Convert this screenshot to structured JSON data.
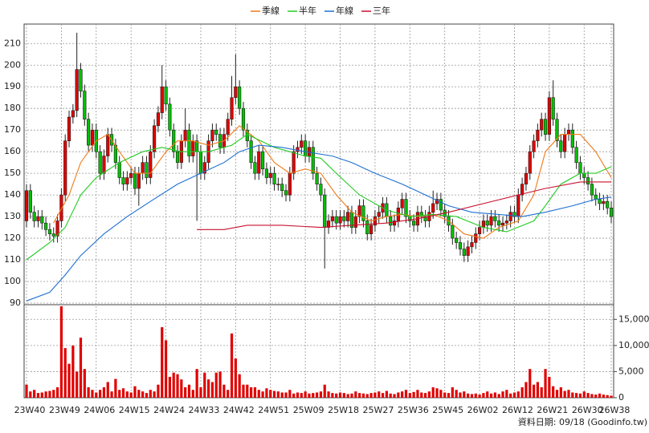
{
  "chart_data": [
    {
      "type": "candlestick",
      "categories": [
        "23W40",
        null,
        null,
        null,
        null,
        null,
        null,
        null,
        null,
        "23W49",
        null,
        null,
        null,
        null,
        null,
        null,
        null,
        null,
        "24W06",
        null,
        null,
        null,
        null,
        null,
        null,
        null,
        null,
        "24W15",
        null,
        null,
        null,
        null,
        null,
        null,
        null,
        null,
        "24W24",
        null,
        null,
        null,
        null,
        null,
        null,
        null,
        null,
        "24W33",
        null,
        null,
        null,
        null,
        null,
        null,
        null,
        null,
        "24W42",
        null,
        null,
        null,
        null,
        null,
        null,
        null,
        null,
        "24W51",
        null,
        null,
        null,
        null,
        null,
        null,
        null,
        null,
        "25W09",
        null,
        null,
        null,
        null,
        null,
        null,
        null,
        null,
        "25W18",
        null,
        null,
        null,
        null,
        null,
        null,
        null,
        null,
        "25W27",
        null,
        null,
        null,
        null,
        null,
        null,
        null,
        null,
        "25W36",
        null,
        null,
        null,
        null,
        null,
        null,
        null,
        null,
        "25W45",
        null,
        null,
        null,
        null,
        null,
        null,
        null,
        null,
        "26W02",
        null,
        null,
        null,
        null,
        null,
        null,
        null,
        null,
        "26W12",
        null,
        null,
        null,
        null,
        null,
        null,
        null,
        null,
        "26W21",
        null,
        null,
        null,
        null,
        null,
        null,
        null,
        null,
        "26W30",
        null,
        null,
        null,
        null,
        null,
        null,
        "26W38"
      ],
      "open": [
        128,
        142,
        132,
        128,
        130,
        127,
        124,
        122,
        121,
        128,
        140,
        165,
        176,
        179,
        198,
        188,
        175,
        163,
        170,
        160,
        150,
        158,
        168,
        163,
        155,
        148,
        145,
        148,
        150,
        143,
        150,
        155,
        148,
        160,
        172,
        178,
        190,
        182,
        170,
        160,
        155,
        165,
        170,
        158,
        165,
        160,
        150,
        155,
        165,
        170,
        168,
        162,
        168,
        175,
        185,
        190,
        180,
        170,
        165,
        155,
        150,
        160,
        152,
        148,
        150,
        145,
        145,
        142,
        140,
        150,
        160,
        162,
        165,
        158,
        162,
        150,
        145,
        140,
        125,
        128,
        130,
        127,
        130,
        128,
        132,
        125,
        130,
        135,
        128,
        122,
        126,
        130,
        132,
        136,
        130,
        126,
        128,
        134,
        138,
        130,
        128,
        126,
        132,
        130,
        128,
        132,
        136,
        138,
        133,
        130,
        126,
        120,
        118,
        115,
        112,
        116,
        118,
        122,
        125,
        128,
        126,
        130,
        128,
        126,
        127,
        128,
        132,
        130,
        140,
        145,
        150,
        160,
        165,
        170,
        175,
        168,
        185,
        175,
        165,
        160,
        168,
        170,
        162,
        155,
        150,
        148,
        145,
        140,
        138,
        136,
        137,
        134
      ],
      "high": [
        145,
        145,
        135,
        133,
        133,
        130,
        127,
        125,
        131,
        143,
        168,
        179,
        182,
        215,
        201,
        191,
        178,
        173,
        173,
        163,
        161,
        171,
        171,
        166,
        158,
        151,
        151,
        153,
        153,
        153,
        158,
        158,
        163,
        175,
        181,
        200,
        193,
        185,
        173,
        163,
        168,
        180,
        173,
        168,
        168,
        163,
        158,
        168,
        173,
        173,
        171,
        171,
        178,
        195,
        205,
        193,
        183,
        173,
        168,
        158,
        163,
        163,
        155,
        153,
        153,
        148,
        148,
        145,
        153,
        163,
        165,
        168,
        168,
        165,
        165,
        153,
        148,
        143,
        131,
        133,
        133,
        133,
        133,
        135,
        135,
        133,
        138,
        138,
        131,
        129,
        133,
        135,
        139,
        139,
        133,
        131,
        137,
        141,
        141,
        133,
        131,
        135,
        135,
        133,
        135,
        142,
        141,
        141,
        136,
        133,
        129,
        123,
        121,
        118,
        119,
        121,
        125,
        128,
        131,
        131,
        133,
        133,
        131,
        130,
        131,
        135,
        135,
        143,
        148,
        153,
        163,
        168,
        173,
        178,
        178,
        188,
        193,
        178,
        168,
        171,
        173,
        173,
        165,
        158,
        153,
        151,
        148,
        143,
        141,
        140,
        140,
        137
      ],
      "low": [
        125,
        129,
        125,
        125,
        124,
        121,
        119,
        118,
        118,
        125,
        137,
        162,
        173,
        176,
        185,
        172,
        160,
        160,
        157,
        147,
        147,
        155,
        160,
        152,
        145,
        142,
        142,
        145,
        140,
        135,
        147,
        145,
        145,
        157,
        169,
        175,
        179,
        167,
        157,
        152,
        152,
        162,
        155,
        155,
        128,
        147,
        147,
        152,
        162,
        165,
        159,
        159,
        165,
        172,
        182,
        177,
        167,
        162,
        152,
        147,
        147,
        149,
        145,
        145,
        142,
        142,
        139,
        137,
        137,
        147,
        157,
        159,
        155,
        155,
        147,
        142,
        137,
        106,
        122,
        125,
        124,
        124,
        125,
        125,
        122,
        122,
        127,
        125,
        119,
        119,
        123,
        127,
        129,
        127,
        123,
        123,
        125,
        131,
        127,
        125,
        123,
        123,
        127,
        125,
        125,
        129,
        133,
        130,
        127,
        123,
        117,
        115,
        112,
        109,
        109,
        113,
        115,
        119,
        122,
        123,
        123,
        125,
        123,
        123,
        124,
        125,
        127,
        127,
        137,
        142,
        147,
        157,
        162,
        167,
        165,
        165,
        172,
        162,
        157,
        157,
        165,
        159,
        152,
        147,
        145,
        142,
        137,
        135,
        133,
        133,
        131,
        127
      ],
      "close": [
        142,
        132,
        128,
        130,
        127,
        124,
        122,
        121,
        128,
        140,
        165,
        176,
        179,
        198,
        188,
        175,
        163,
        170,
        160,
        150,
        158,
        168,
        163,
        155,
        148,
        145,
        148,
        150,
        143,
        150,
        155,
        148,
        160,
        172,
        178,
        190,
        182,
        170,
        160,
        155,
        165,
        170,
        158,
        165,
        160,
        150,
        155,
        165,
        170,
        168,
        162,
        168,
        175,
        185,
        190,
        180,
        170,
        165,
        155,
        150,
        160,
        152,
        148,
        150,
        145,
        145,
        142,
        140,
        150,
        160,
        162,
        165,
        158,
        162,
        150,
        145,
        140,
        125,
        128,
        130,
        127,
        130,
        128,
        132,
        125,
        130,
        135,
        128,
        122,
        126,
        130,
        132,
        136,
        130,
        126,
        128,
        134,
        138,
        130,
        128,
        126,
        132,
        130,
        128,
        132,
        136,
        138,
        133,
        130,
        126,
        120,
        118,
        115,
        112,
        116,
        118,
        122,
        125,
        128,
        126,
        130,
        128,
        126,
        127,
        128,
        132,
        130,
        140,
        145,
        150,
        160,
        165,
        170,
        175,
        168,
        185,
        175,
        165,
        160,
        168,
        170,
        162,
        155,
        150,
        148,
        145,
        140,
        138,
        136,
        137,
        134,
        130
      ],
      "up_color": "#e00000",
      "down_color": "#00c000",
      "series": [
        {
          "name": "季線",
          "color": "#f07a1a",
          "x": [
            7,
            11,
            14,
            18,
            21,
            24,
            28,
            32,
            36,
            39,
            43,
            47,
            51,
            55,
            60,
            64,
            68,
            72,
            76,
            80,
            84,
            89,
            93,
            97,
            101,
            105,
            109,
            113,
            118,
            122,
            127,
            131,
            134,
            138,
            143,
            147,
            151
          ],
          "values": [
            127,
            140,
            155,
            165,
            168,
            160,
            150,
            150,
            160,
            165,
            165,
            163,
            165,
            172,
            165,
            155,
            150,
            152,
            150,
            140,
            132,
            128,
            130,
            131,
            130,
            131,
            128,
            122,
            120,
            125,
            128,
            140,
            160,
            168,
            168,
            160,
            148
          ]
        },
        {
          "name": "半年",
          "color": "#22cc22",
          "x": [
            0,
            6,
            10,
            14,
            18,
            24,
            30,
            35,
            40,
            47,
            53,
            57,
            64,
            68,
            72,
            76,
            80,
            86,
            93,
            99,
            105,
            111,
            118,
            124,
            131,
            134,
            138,
            143,
            147,
            151
          ],
          "values": [
            110,
            118,
            125,
            140,
            148,
            155,
            160,
            162,
            160,
            160,
            163,
            168,
            162,
            160,
            158,
            157,
            150,
            140,
            133,
            130,
            131,
            130,
            125,
            123,
            128,
            135,
            145,
            150,
            150,
            153
          ]
        },
        {
          "name": "年線",
          "color": "#1f6fd0",
          "x": [
            0,
            6,
            10,
            14,
            20,
            26,
            32,
            39,
            45,
            51,
            55,
            60,
            66,
            72,
            79,
            84,
            90,
            97,
            103,
            109,
            115,
            122,
            128,
            134,
            141,
            147,
            151
          ],
          "values": [
            91,
            95,
            103,
            112,
            122,
            130,
            137,
            145,
            150,
            155,
            160,
            163,
            162,
            160,
            158,
            155,
            150,
            145,
            140,
            135,
            132,
            131,
            130,
            132,
            135,
            138,
            139
          ]
        },
        {
          "name": "三年",
          "color": "#c8102e",
          "x": [
            44,
            51,
            57,
            66,
            76,
            84,
            93,
            101,
            109,
            118,
            127,
            134,
            143,
            151
          ],
          "values": [
            124,
            124,
            126,
            126,
            125,
            126,
            127,
            129,
            132,
            136,
            140,
            143,
            146,
            146
          ]
        }
      ],
      "ylim": [
        90,
        219
      ],
      "yticks": [
        90,
        100,
        110,
        120,
        130,
        140,
        150,
        160,
        170,
        180,
        190,
        200,
        210
      ],
      "grid": true,
      "legend": "top"
    },
    {
      "type": "bar",
      "values": [
        2500,
        1200,
        1500,
        900,
        1000,
        1200,
        1300,
        1500,
        2000,
        17500,
        9500,
        6500,
        10000,
        5000,
        11500,
        5500,
        2000,
        1500,
        1000,
        1500,
        2000,
        3000,
        1200,
        3600,
        1500,
        1800,
        1200,
        1000,
        2200,
        1500,
        1200,
        900,
        1500,
        1200,
        2500,
        13500,
        11000,
        4000,
        4800,
        4500,
        3500,
        2000,
        2500,
        1500,
        5500,
        2000,
        4800,
        3500,
        3000,
        4800,
        5000,
        2500,
        1500,
        12300,
        7500,
        4500,
        2500,
        2500,
        2000,
        2000,
        1500,
        1200,
        1800,
        1500,
        1300,
        1200,
        1000,
        1000,
        1500,
        800,
        1000,
        900,
        1200,
        800,
        900,
        1000,
        1200,
        2500,
        1200,
        900,
        800,
        1000,
        900,
        700,
        800,
        1200,
        900,
        800,
        700,
        900,
        1000,
        1200,
        900,
        1300,
        800,
        700,
        1000,
        1200,
        1500,
        900,
        1100,
        1500,
        1000,
        900,
        1200,
        2000,
        1800,
        1500,
        1000,
        900,
        2000,
        1500,
        1000,
        1200,
        800,
        700,
        800,
        600,
        900,
        1200,
        800,
        1000,
        700,
        1200,
        1500,
        800,
        1000,
        1200,
        2000,
        3000,
        5500,
        2500,
        3000,
        2000,
        5500,
        4000,
        2200,
        1500,
        2000,
        1300,
        1500,
        1000,
        900,
        800,
        1200,
        900,
        700,
        600,
        800,
        600,
        500,
        400
      ],
      "color": "#e00000",
      "ylim": [
        0,
        17500
      ],
      "yticks": [
        0,
        {
          "value": 5000,
          "label": "5,000"
        },
        {
          "value": 10000,
          "label": "10,000"
        },
        {
          "value": 15000,
          "label": "15,000"
        }
      ],
      "grid": true
    }
  ],
  "footer": "資料日期: 09/18 (Goodinfo.tw)"
}
